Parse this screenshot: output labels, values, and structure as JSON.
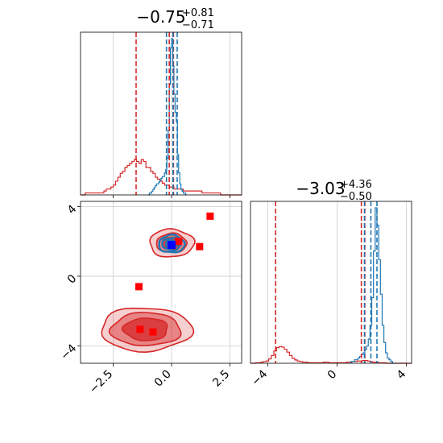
{
  "chart_data": {
    "type": "corner",
    "colors": {
      "red": "#d62728",
      "blue": "#1f77b4",
      "truth_marker": "#0000ff",
      "point_marker": "#ff0000"
    },
    "grid": true,
    "panels": {
      "p1_hist": {
        "title_main": "−0.75",
        "title_sup": "+0.81",
        "title_sub": "−0.71",
        "xlim": [
          -3.9,
          3.0
        ],
        "red_quantiles": [
          -1.52,
          -0.1,
          0.08
        ],
        "blue_quantiles": [
          -0.22,
          0.06,
          0.24
        ],
        "red_hist": {
          "edges_start": -3.9,
          "bin_width": 0.1,
          "counts": [
            0,
            0,
            1,
            1,
            1,
            1,
            1,
            1,
            1,
            1,
            2,
            3,
            3,
            4,
            5,
            7,
            9,
            11,
            12,
            14,
            15,
            16,
            17,
            18,
            17,
            16,
            18,
            17,
            14,
            14,
            12,
            11,
            9,
            8,
            7,
            6,
            5,
            5,
            4,
            4,
            3,
            3,
            3,
            3,
            2,
            2,
            2,
            2,
            2,
            2,
            2,
            2,
            1,
            1,
            1,
            1,
            1,
            1,
            1,
            1,
            0,
            0,
            0,
            0,
            0,
            0,
            0,
            0,
            0
          ]
        },
        "blue_hist": {
          "edges_start": -1.0,
          "bin_width": 0.05,
          "counts": [
            0,
            1,
            1,
            2,
            3,
            4,
            5,
            6,
            6,
            7,
            8,
            9,
            10,
            10,
            12,
            14,
            20,
            35,
            60,
            80,
            85,
            70,
            55,
            45,
            40,
            22,
            12,
            6,
            3,
            2,
            1,
            1,
            0
          ]
        }
      },
      "p2_hist": {
        "title_main": "−3.03",
        "title_sup": "+4.36",
        "title_sub": "−0.50",
        "xlim": [
          -5.0,
          4.3
        ],
        "xticks": [
          -4,
          0,
          4
        ],
        "xticklabels": [
          "−4",
          "0",
          "4"
        ],
        "red_quantiles": [
          -3.55,
          1.4,
          1.6
        ],
        "blue_quantiles": [
          1.58,
          1.95,
          2.3
        ],
        "red_hist": {
          "edges_start": -5.0,
          "bin_width": 0.15,
          "counts": [
            0,
            0,
            1,
            1,
            2,
            3,
            4,
            8,
            14,
            22,
            28,
            30,
            29,
            25,
            20,
            14,
            9,
            6,
            4,
            3,
            2,
            2,
            1,
            1,
            1,
            1,
            1,
            1,
            2,
            2,
            1,
            1,
            1,
            1,
            1,
            1,
            1,
            2,
            2,
            3,
            3,
            4,
            4,
            5,
            5,
            4,
            3,
            2,
            2,
            1,
            1,
            1,
            0,
            0,
            0,
            0,
            0,
            0,
            0,
            0,
            0,
            0
          ]
        },
        "blue_hist": {
          "edges_start": 0.8,
          "bin_width": 0.1,
          "counts": [
            1,
            1,
            2,
            2,
            3,
            4,
            5,
            6,
            8,
            10,
            14,
            22,
            38,
            65,
            90,
            80,
            60,
            40,
            22,
            12,
            6,
            3,
            2,
            1,
            0
          ]
        }
      },
      "p3_joint": {
        "xlim": [
          -3.9,
          3.0
        ],
        "ylim": [
          -5.0,
          4.3
        ],
        "xticks": [
          -2.5,
          0.0,
          2.5
        ],
        "xticklabels": [
          "−2.5",
          "0.0",
          "2.5"
        ],
        "yticks": [
          -4,
          0,
          4
        ],
        "yticklabels": [
          "−4",
          "0",
          "4"
        ],
        "red_clusters": [
          {
            "cx": 0.0,
            "cy": 1.9,
            "rx": [
              0.95,
              0.65,
              0.4
            ],
            "ry": [
              0.8,
              0.55,
              0.35
            ]
          },
          {
            "cx": -1.1,
            "cy": -3.05,
            "rx": [
              1.95,
              1.5,
              0.95
            ],
            "ry": [
              1.25,
              0.95,
              0.65
            ]
          }
        ],
        "blue_cluster": {
          "cx": 0.0,
          "cy": 1.85,
          "rx": [
            0.55,
            0.4,
            0.25
          ],
          "ry": [
            0.5,
            0.35,
            0.22
          ]
        },
        "red_points": [
          {
            "x": 1.65,
            "y": 3.45
          },
          {
            "x": -1.4,
            "y": -0.6
          },
          {
            "x": 1.2,
            "y": 1.7
          },
          {
            "x": 0.3,
            "y": 2.0
          },
          {
            "x": -1.35,
            "y": -3.05
          },
          {
            "x": -0.8,
            "y": -3.2
          }
        ],
        "truth_point": {
          "x": 0.0,
          "y": 1.8
        }
      }
    }
  }
}
